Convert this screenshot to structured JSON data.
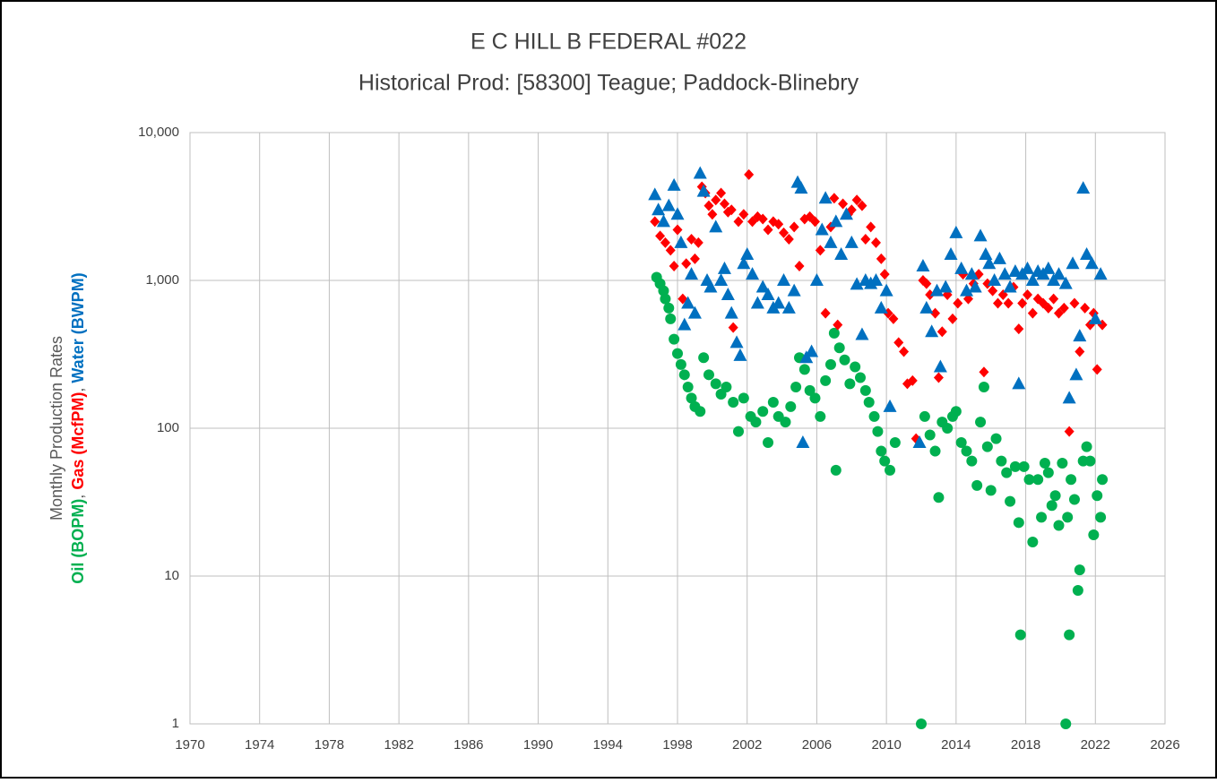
{
  "chart_data": {
    "type": "scatter",
    "title": "E C HILL B FEDERAL #022",
    "subtitle": "Historical Prod: [58300] Teague; Paddock-Blinebry",
    "ylabel": "Monthly Production Rates",
    "ylabel_separators": [
      ", ",
      ", "
    ],
    "ylog": true,
    "grid": true,
    "xlim": [
      1970,
      2026
    ],
    "xticks": [
      1970,
      1974,
      1978,
      1982,
      1986,
      1990,
      1994,
      1998,
      2002,
      2006,
      2010,
      2014,
      2018,
      2022,
      2026
    ],
    "ylim": [
      1,
      10000
    ],
    "yticks": [
      1,
      10,
      100,
      {
        "value": 1000,
        "label": "1,000"
      },
      {
        "value": 10000,
        "label": "10,000"
      }
    ],
    "series": [
      {
        "name": "Oil (BOPM)",
        "color": "#00b050",
        "marker": "circle",
        "x": [
          1996.8,
          1997.0,
          1997.2,
          1997.3,
          1997.5,
          1997.6,
          1997.8,
          1998.0,
          1998.2,
          1998.4,
          1998.6,
          1998.8,
          1999.0,
          1999.3,
          1999.5,
          1999.8,
          2000.2,
          2000.5,
          2000.8,
          2001.2,
          2001.5,
          2001.8,
          2002.2,
          2002.5,
          2002.9,
          2003.2,
          2003.5,
          2003.8,
          2004.2,
          2004.5,
          2004.8,
          2005.0,
          2005.3,
          2005.6,
          2005.9,
          2006.2,
          2006.5,
          2006.8,
          2007.0,
          2007.1,
          2007.3,
          2007.6,
          2007.9,
          2008.2,
          2008.5,
          2008.8,
          2009.0,
          2009.3,
          2009.5,
          2009.7,
          2009.9,
          2010.2,
          2010.5,
          2012.0,
          2012.2,
          2012.5,
          2012.8,
          2013.0,
          2013.2,
          2013.5,
          2013.8,
          2014.0,
          2014.3,
          2014.6,
          2014.9,
          2015.2,
          2015.4,
          2015.6,
          2015.8,
          2016.0,
          2016.3,
          2016.6,
          2016.9,
          2017.1,
          2017.4,
          2017.6,
          2017.7,
          2017.9,
          2018.2,
          2018.4,
          2018.7,
          2018.9,
          2019.1,
          2019.3,
          2019.5,
          2019.7,
          2019.9,
          2020.1,
          2020.3,
          2020.4,
          2020.5,
          2020.6,
          2020.8,
          2021.0,
          2021.1,
          2021.3,
          2021.5,
          2021.7,
          2021.9,
          2022.1,
          2022.3,
          2022.4
        ],
        "values": [
          1050,
          950,
          850,
          750,
          650,
          550,
          400,
          320,
          270,
          230,
          190,
          160,
          140,
          130,
          300,
          230,
          200,
          170,
          190,
          150,
          95,
          160,
          120,
          110,
          130,
          80,
          150,
          120,
          110,
          140,
          190,
          300,
          250,
          180,
          160,
          120,
          210,
          270,
          440,
          52,
          350,
          290,
          200,
          260,
          220,
          180,
          150,
          120,
          95,
          70,
          60,
          52,
          80,
          1,
          120,
          90,
          70,
          34,
          110,
          100,
          120,
          130,
          80,
          70,
          60,
          41,
          110,
          190,
          75,
          38,
          85,
          60,
          50,
          32,
          55,
          23,
          4,
          55,
          45,
          17,
          45,
          25,
          58,
          50,
          30,
          35,
          22,
          58,
          1,
          25,
          4,
          45,
          33,
          8,
          11,
          60,
          75,
          60,
          19,
          35,
          25,
          45
        ]
      },
      {
        "name": "Gas (McfPM)",
        "color": "#ff0000",
        "marker": "diamond",
        "x": [
          1996.7,
          1997.0,
          1997.3,
          1997.6,
          1997.8,
          1998.0,
          1998.3,
          1998.5,
          1998.8,
          1999.0,
          1999.2,
          1999.4,
          1999.6,
          1999.8,
          2000.0,
          2000.2,
          2000.5,
          2000.7,
          2000.9,
          2001.1,
          2001.2,
          2001.5,
          2001.8,
          2002.1,
          2002.3,
          2002.6,
          2002.9,
          2003.2,
          2003.5,
          2003.8,
          2004.1,
          2004.4,
          2004.7,
          2005.0,
          2005.3,
          2005.6,
          2005.9,
          2006.2,
          2006.5,
          2006.8,
          2007.0,
          2007.2,
          2007.5,
          2007.8,
          2008.0,
          2008.3,
          2008.6,
          2008.8,
          2009.1,
          2009.4,
          2009.7,
          2009.9,
          2010.1,
          2010.4,
          2010.7,
          2011.0,
          2011.2,
          2011.5,
          2011.7,
          2012.1,
          2012.3,
          2012.5,
          2012.8,
          2013.0,
          2013.2,
          2013.5,
          2013.8,
          2014.1,
          2014.4,
          2014.7,
          2015.0,
          2015.3,
          2015.6,
          2015.8,
          2016.1,
          2016.4,
          2016.7,
          2017.0,
          2017.3,
          2017.6,
          2017.8,
          2018.1,
          2018.4,
          2018.7,
          2019.0,
          2019.3,
          2019.6,
          2019.9,
          2020.2,
          2020.5,
          2020.8,
          2021.1,
          2021.4,
          2021.7,
          2021.9,
          2022.1,
          2022.4
        ],
        "values": [
          2500,
          2000,
          1800,
          1600,
          1250,
          2200,
          750,
          1300,
          1900,
          1400,
          1800,
          4300,
          3900,
          3200,
          2800,
          3500,
          3900,
          3300,
          2900,
          3000,
          480,
          2500,
          2800,
          5200,
          2500,
          2700,
          2600,
          2200,
          2500,
          2400,
          2100,
          1900,
          2300,
          1250,
          2600,
          2700,
          2500,
          1600,
          600,
          2300,
          3600,
          500,
          3300,
          2800,
          3000,
          3500,
          3200,
          1900,
          2300,
          1800,
          1400,
          1100,
          600,
          550,
          380,
          330,
          200,
          210,
          85,
          1000,
          950,
          800,
          600,
          220,
          450,
          800,
          550,
          700,
          1100,
          750,
          950,
          1100,
          240,
          950,
          850,
          700,
          800,
          700,
          900,
          470,
          700,
          800,
          600,
          750,
          700,
          650,
          750,
          600,
          650,
          95,
          700,
          330,
          650,
          500,
          600,
          250,
          500
        ]
      },
      {
        "name": "Water (BWPM)",
        "color": "#0070c0",
        "marker": "triangle",
        "x": [
          1996.7,
          1996.9,
          1997.2,
          1997.5,
          1997.8,
          1998.0,
          1998.2,
          1998.4,
          1998.6,
          1998.8,
          1999.0,
          1999.3,
          1999.5,
          1999.7,
          1999.9,
          2000.2,
          2000.5,
          2000.7,
          2000.9,
          2001.1,
          2001.4,
          2001.6,
          2001.8,
          2002.0,
          2002.3,
          2002.6,
          2002.9,
          2003.2,
          2003.5,
          2003.8,
          2004.1,
          2004.4,
          2004.7,
          2004.9,
          2005.1,
          2005.2,
          2005.4,
          2005.7,
          2006.0,
          2006.3,
          2006.5,
          2006.8,
          2007.1,
          2007.4,
          2007.7,
          2008.0,
          2008.3,
          2008.6,
          2008.8,
          2009.1,
          2009.4,
          2009.7,
          2010.0,
          2010.2,
          2011.9,
          2012.1,
          2012.3,
          2012.6,
          2012.9,
          2013.1,
          2013.4,
          2013.7,
          2014.0,
          2014.3,
          2014.6,
          2014.9,
          2015.1,
          2015.4,
          2015.7,
          2015.9,
          2016.2,
          2016.5,
          2016.8,
          2017.1,
          2017.4,
          2017.6,
          2017.8,
          2018.1,
          2018.4,
          2018.7,
          2019.0,
          2019.3,
          2019.6,
          2019.9,
          2020.3,
          2020.5,
          2020.7,
          2020.9,
          2021.1,
          2021.3,
          2021.5,
          2021.8,
          2022.0,
          2022.3
        ],
        "values": [
          3800,
          3000,
          2500,
          3200,
          4400,
          2800,
          1800,
          500,
          700,
          1100,
          600,
          5300,
          4000,
          1000,
          900,
          2300,
          1000,
          1200,
          800,
          600,
          380,
          310,
          1300,
          1500,
          1100,
          700,
          900,
          800,
          650,
          700,
          1000,
          650,
          850,
          4600,
          4200,
          80,
          300,
          330,
          1000,
          2200,
          3600,
          1800,
          2500,
          1500,
          2800,
          1800,
          940,
          430,
          1000,
          950,
          1000,
          650,
          850,
          140,
          80,
          1250,
          650,
          450,
          850,
          260,
          900,
          1500,
          2100,
          1200,
          850,
          1100,
          900,
          2000,
          1500,
          1300,
          1000,
          1400,
          1100,
          900,
          1150,
          200,
          1100,
          1200,
          1000,
          1150,
          1100,
          1200,
          1000,
          1100,
          950,
          160,
          1300,
          230,
          420,
          4200,
          1500,
          1300,
          550,
          1100
        ]
      }
    ]
  }
}
